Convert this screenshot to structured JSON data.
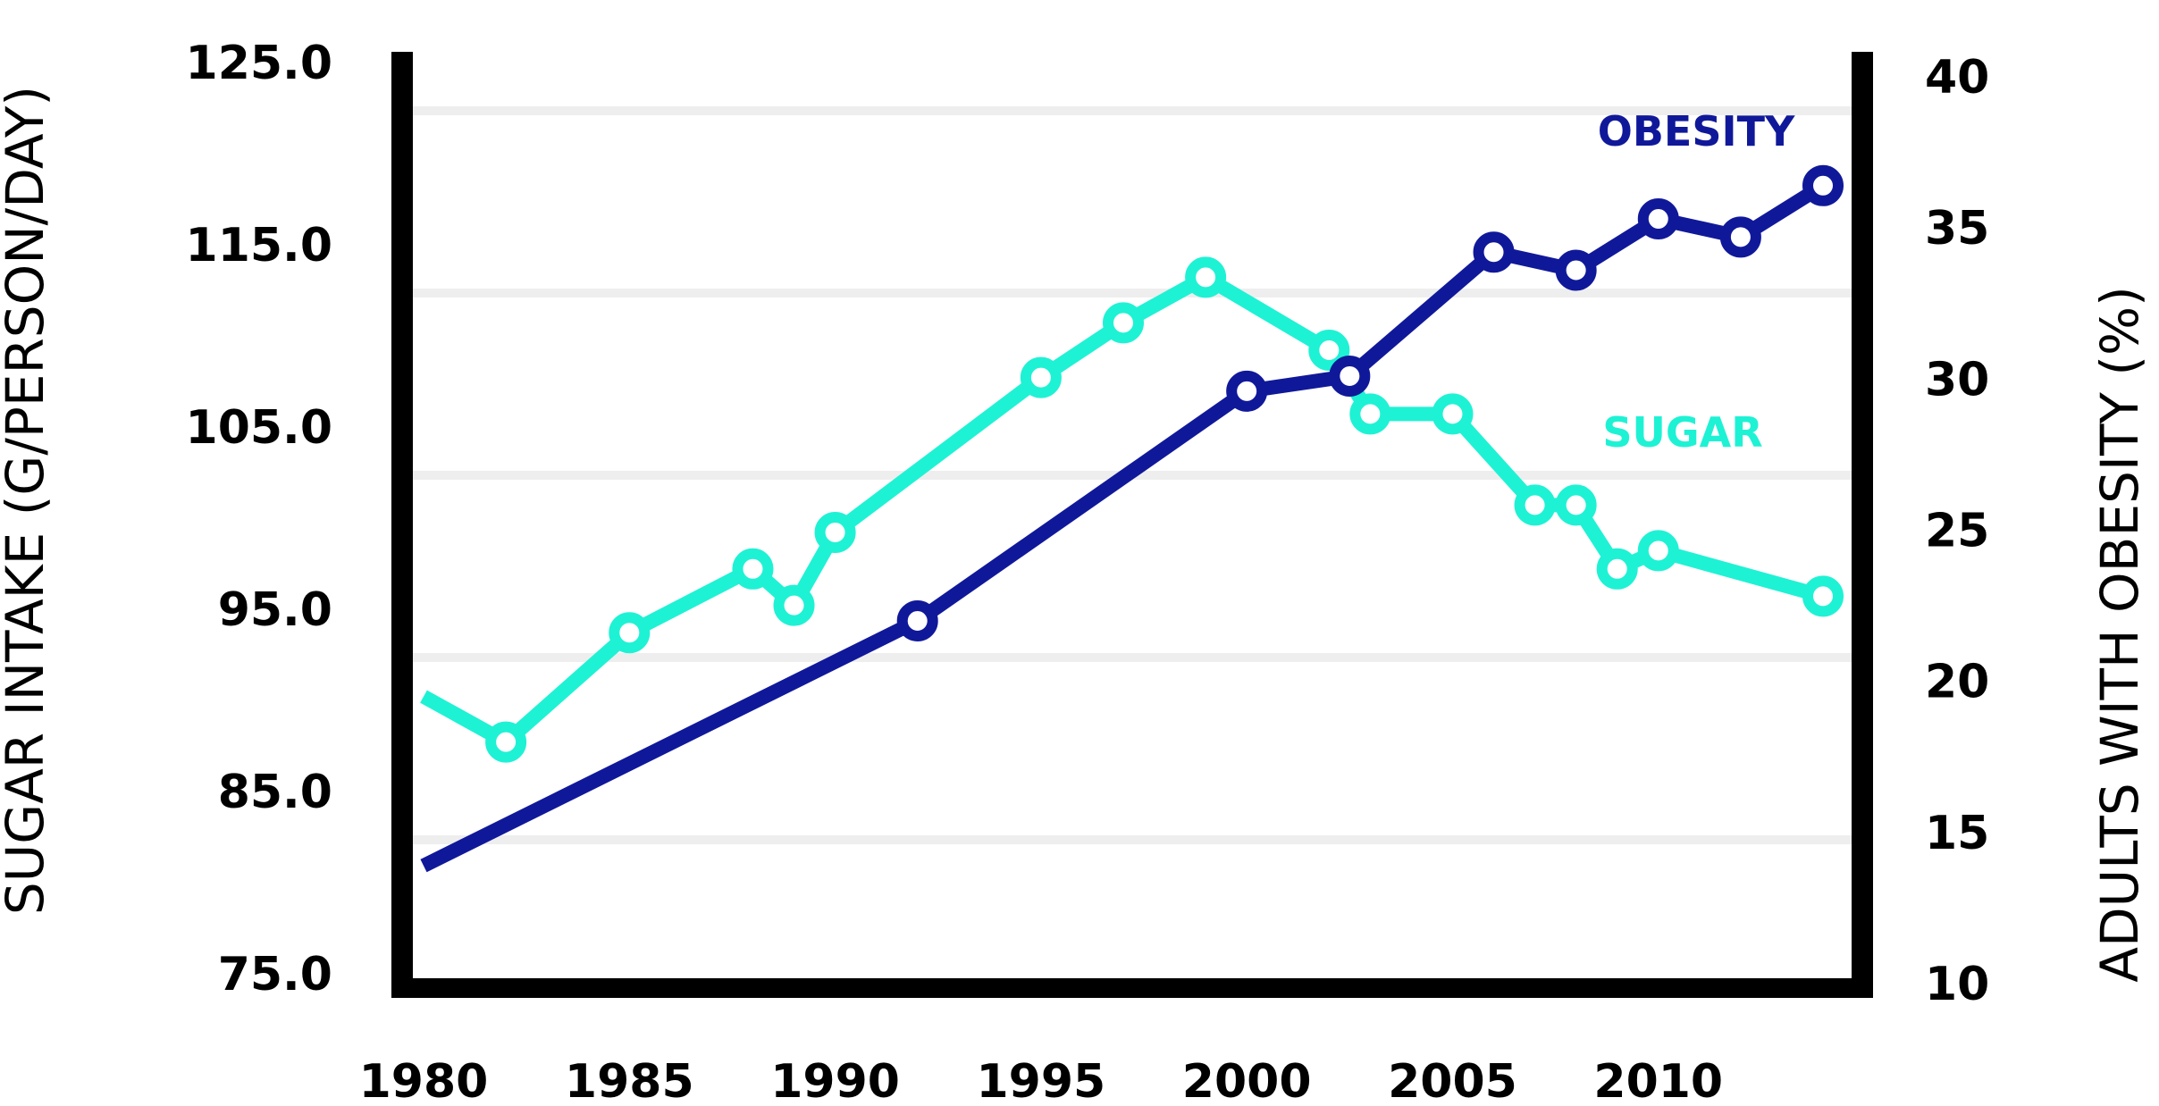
{
  "chart_data": {
    "type": "line",
    "ylabel_left": "SUGAR INTAKE (G/PERSON/DAY)",
    "ylabel_right": "ADULTS WITH OBESITY (%)",
    "xlim": [
      1980,
      2014
    ],
    "ylim_left": [
      75.0,
      125.0
    ],
    "ylim_right": [
      10,
      40
    ],
    "x_ticks": [
      "1980",
      "1985",
      "1990",
      "1995",
      "2000",
      "2005",
      "2010"
    ],
    "y_left_ticks": [
      "75.0",
      "85.0",
      "95.0",
      "105.0",
      "115.0",
      "125.0"
    ],
    "y_right_ticks": [
      "10",
      "15",
      "20",
      "25",
      "30",
      "35",
      "40"
    ],
    "grid": true,
    "colors": {
      "sugar": "#1ef2d4",
      "obesity": "#10189a",
      "axes": "#000000",
      "grid": "#eeeeee"
    },
    "series": [
      {
        "name": "SUGAR",
        "axis": "left",
        "x": [
          1980,
          1982,
          1985,
          1988,
          1989,
          1990,
          1995,
          1997,
          1999,
          2002,
          2003,
          2005,
          2007,
          2008,
          2009,
          2010,
          2014
        ],
        "y": [
          91.0,
          88.5,
          94.5,
          98.0,
          96.0,
          100.0,
          108.5,
          111.5,
          114.0,
          110.0,
          106.5,
          106.5,
          101.5,
          101.5,
          98.0,
          99.0,
          96.5
        ],
        "markers": [
          false,
          true,
          true,
          true,
          true,
          true,
          true,
          true,
          true,
          true,
          true,
          true,
          true,
          true,
          true,
          true,
          true
        ]
      },
      {
        "name": "OBESITY",
        "axis": "right",
        "x": [
          1980,
          1992,
          2000,
          2002.5,
          2006,
          2008,
          2010,
          2012,
          2014
        ],
        "y": [
          13.9,
          22.0,
          29.6,
          30.1,
          34.2,
          33.6,
          35.3,
          34.7,
          36.4
        ],
        "markers": [
          false,
          true,
          true,
          true,
          true,
          true,
          true,
          true,
          true
        ]
      }
    ]
  }
}
